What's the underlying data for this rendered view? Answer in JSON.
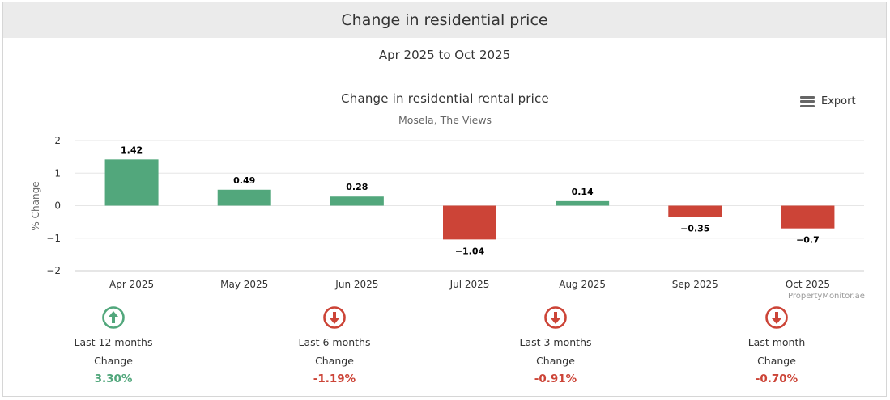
{
  "header": {
    "title": "Change in residential price"
  },
  "period": "Apr 2025 to Oct 2025",
  "export": {
    "label": "Export",
    "icon": "menu-icon"
  },
  "credit": "PropertyMonitor.ae",
  "colors": {
    "positive": "#52a77c",
    "negative": "#cc4437"
  },
  "chart_data": {
    "type": "bar",
    "title": "Change in residential rental price",
    "subtitle": "Mosela, The Views",
    "ylabel": "% Change",
    "xlabel": "",
    "ylim": [
      -2,
      2
    ],
    "yticks": [
      "2",
      "1",
      "0",
      "−1",
      "−2"
    ],
    "grid": true,
    "legend": "none",
    "categories": [
      "Apr 2025",
      "May 2025",
      "Jun 2025",
      "Jul 2025",
      "Aug 2025",
      "Sep 2025",
      "Oct 2025"
    ],
    "values": [
      1.42,
      0.49,
      0.28,
      -1.04,
      0.14,
      -0.35,
      -0.7
    ],
    "data_labels": [
      "1.42",
      "0.49",
      "0.28",
      "−1.04",
      "0.14",
      "−0.35",
      "−0.7"
    ]
  },
  "summary": [
    {
      "period": "Last 12 months",
      "change_label": "Change",
      "value": "3.30%",
      "direction": "up",
      "icon": "arrow-up-circle-icon"
    },
    {
      "period": "Last 6 months",
      "change_label": "Change",
      "value": "-1.19%",
      "direction": "down",
      "icon": "arrow-down-circle-icon"
    },
    {
      "period": "Last 3 months",
      "change_label": "Change",
      "value": "-0.91%",
      "direction": "down",
      "icon": "arrow-down-circle-icon"
    },
    {
      "period": "Last month",
      "change_label": "Change",
      "value": "-0.70%",
      "direction": "down",
      "icon": "arrow-down-circle-icon"
    }
  ]
}
